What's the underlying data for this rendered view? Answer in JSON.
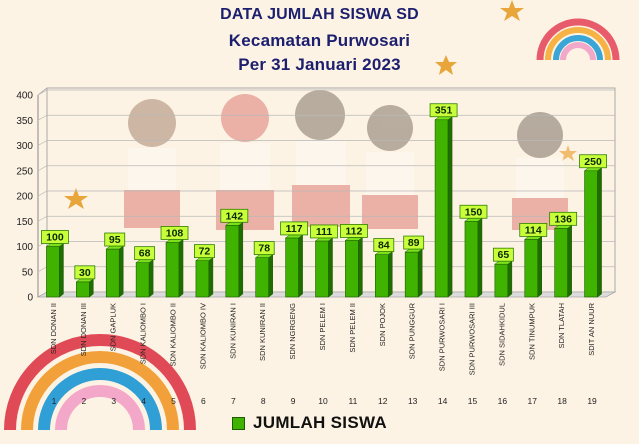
{
  "chart_data": {
    "type": "bar",
    "title": "DATA JUMLAH SISWA SD",
    "subtitle": "Kecamatan Purwosari",
    "subtitle2": "Per 31 Januari 2023",
    "categories": [
      "SDN DONAN II",
      "SDN DONAN III",
      "SDN GAPLUK",
      "SDN KALIOMBO I",
      "SDN KALIOMBO II",
      "SDN KALIOMBO IV",
      "SDN KUNIRAN I",
      "SDN KUNIRAN II",
      "SDN NGRGENG",
      "SDN PELEM I",
      "SDN PELEM II",
      "SDN POJOK",
      "SDN PUNGGUR",
      "SDN PURWOSARI I",
      "SDN PURWOSARI III",
      "SDN SIDAHKIDUL",
      "SDN TINUMPUK",
      "SDN TLATAH",
      "SDIT AN NUUR"
    ],
    "numbers": [
      "1",
      "2",
      "3",
      "4",
      "5",
      "6",
      "7",
      "8",
      "9",
      "10",
      "11",
      "12",
      "13",
      "14",
      "15",
      "16",
      "17",
      "18",
      "19"
    ],
    "series": [
      {
        "name": "JUMLAH SISWA",
        "values": [
          100,
          30,
          95,
          68,
          108,
          72,
          142,
          78,
          117,
          111,
          112,
          84,
          89,
          351,
          150,
          65,
          114,
          136,
          250
        ]
      }
    ],
    "yticks": [
      "0",
      "50",
      "100",
      "150",
      "200",
      "250",
      "300",
      "350",
      "400"
    ],
    "ylim": [
      0,
      400
    ],
    "grid": true,
    "legend_position": "bottom",
    "colors": {
      "bar": "#3fb300",
      "bar_top": "#7be11c",
      "bar_side": "#1f6d00",
      "label_bg": "#c8ff3a",
      "title": "#1b1f6e"
    }
  }
}
